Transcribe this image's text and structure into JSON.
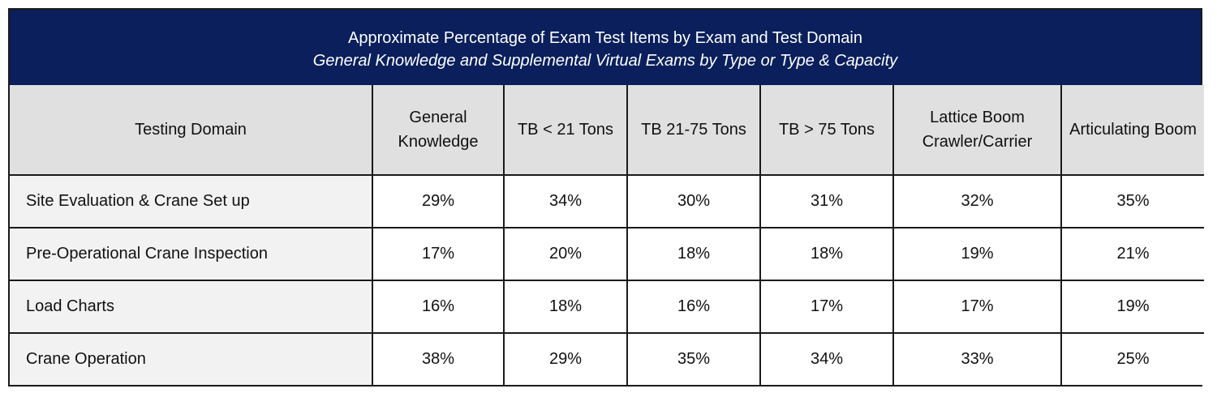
{
  "chart_data": {
    "type": "table",
    "title": "Approximate Percentage of Exam Test Items by Exam and Test Domain",
    "subtitle": "General Knowledge and Supplemental Virtual Exams by Type or Type & Capacity",
    "columns": [
      "Testing Domain",
      "General Knowledge",
      "TB < 21 Tons",
      "TB 21-75 Tons",
      "TB > 75 Tons",
      "Lattice Boom Crawler/Carrier",
      "Articulating Boom"
    ],
    "rows": [
      {
        "domain": "Site Evaluation & Crane Set up",
        "values": [
          "29%",
          "34%",
          "30%",
          "31%",
          "32%",
          "35%"
        ]
      },
      {
        "domain": "Pre-Operational Crane Inspection",
        "values": [
          "17%",
          "20%",
          "18%",
          "18%",
          "19%",
          "21%"
        ]
      },
      {
        "domain": "Load Charts",
        "values": [
          "16%",
          "18%",
          "16%",
          "17%",
          "17%",
          "19%"
        ]
      },
      {
        "domain": "Crane Operation",
        "values": [
          "38%",
          "29%",
          "35%",
          "34%",
          "33%",
          "25%"
        ]
      }
    ]
  },
  "colors": {
    "title_background": "#0a1f5c",
    "header_background": "#e0e0e0",
    "domain_background": "#f2f2f2"
  }
}
